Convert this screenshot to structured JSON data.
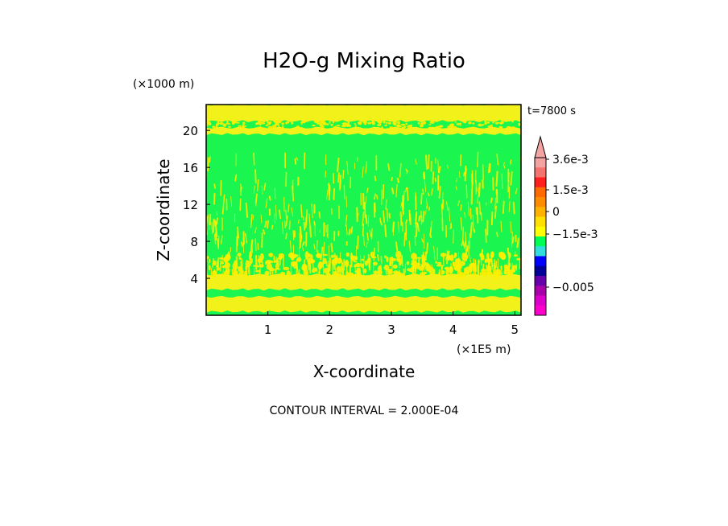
{
  "chart_data": {
    "type": "heatmap",
    "title": "H2O-g Mixing Ratio",
    "xlabel": "X-coordinate",
    "ylabel": "Z-coordinate",
    "x_unit": "(×1E5 m)",
    "y_unit": "(×1000 m)",
    "x_ticks": [
      "1",
      "2",
      "3",
      "4",
      "5"
    ],
    "y_ticks": [
      "4",
      "8",
      "12",
      "16",
      "20"
    ],
    "xlim": [
      0,
      5.1
    ],
    "ylim": [
      0,
      22.8
    ],
    "time_label": "t=7800 s",
    "footer": "CONTOUR INTERVAL = 2.000E-04",
    "colorbar": {
      "labels": [
        "3.6e-3",
        "1.5e-3",
        "0",
        "−1.5e-3",
        "−0.005"
      ],
      "colors": [
        "#f4a3a3",
        "#f4736e",
        "#ff1f1f",
        "#ff6a00",
        "#ff8c00",
        "#ffb300",
        "#ffe000",
        "#ffff00",
        "#00ff55",
        "#33dddd",
        "#0000ff",
        "#000099",
        "#6600aa",
        "#aa00aa",
        "#dd00cc",
        "#ff00cc"
      ]
    },
    "field_layers": [
      {
        "name": "upper-band",
        "zmin": 21.0,
        "zmax": 22.8,
        "color": "#f2f21a"
      },
      {
        "name": "band-20",
        "zmin": 19.6,
        "zmax": 20.3,
        "color": "#f2f21a"
      },
      {
        "name": "low-band",
        "zmin": 2.8,
        "zmax": 4.4,
        "color": "#f2f21a"
      },
      {
        "name": "surface-band",
        "zmin": 0.4,
        "zmax": 2.0,
        "color": "#f2f21a"
      }
    ],
    "background_color": "#1bf54f",
    "streak_color": "#ffee00"
  }
}
